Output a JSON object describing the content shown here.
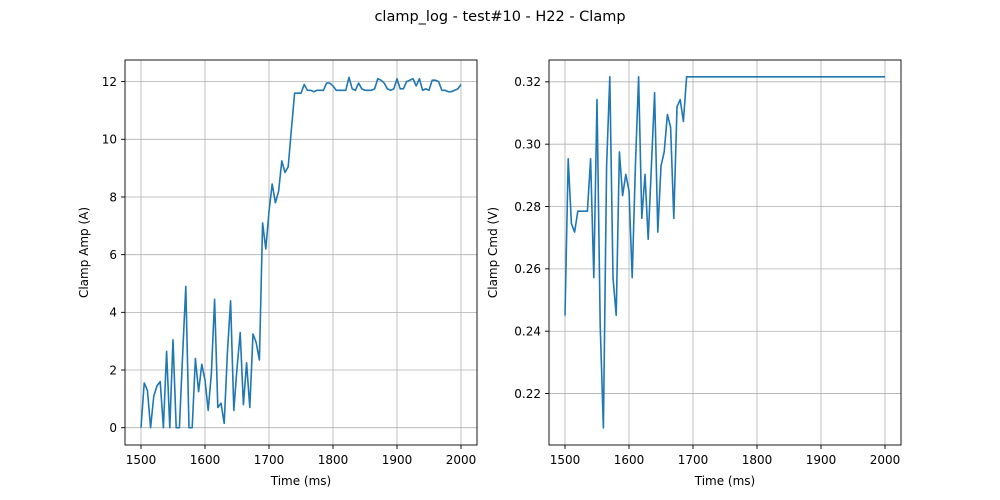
{
  "figure": {
    "title": "clamp_log - test#10 - H22 - Clamp",
    "line_color": "#1f77b4",
    "grid_color": "#b0b0b0"
  },
  "chart_data": [
    {
      "type": "line",
      "title": "",
      "xlabel": "Time (ms)",
      "ylabel": "Clamp Amp (A)",
      "xlim": [
        1475,
        2025
      ],
      "ylim": [
        -0.6,
        12.75
      ],
      "xticks": [
        1500,
        1600,
        1700,
        1800,
        1900,
        2000
      ],
      "xtick_labels": [
        "1500",
        "1600",
        "1700",
        "1800",
        "1900",
        "2000"
      ],
      "yticks": [
        0,
        2,
        4,
        6,
        8,
        10,
        12
      ],
      "ytick_labels": [
        "0",
        "2",
        "4",
        "6",
        "8",
        "10",
        "12"
      ],
      "grid": true,
      "series": [
        {
          "color": "#1f77b4",
          "x": [
            1500,
            1505,
            1510,
            1515,
            1520,
            1525,
            1530,
            1535,
            1540,
            1545,
            1550,
            1555,
            1560,
            1565,
            1570,
            1575,
            1580,
            1585,
            1590,
            1595,
            1600,
            1605,
            1610,
            1615,
            1620,
            1625,
            1630,
            1635,
            1640,
            1645,
            1650,
            1655,
            1660,
            1665,
            1670,
            1675,
            1680,
            1685,
            1690,
            1695,
            1700,
            1705,
            1710,
            1715,
            1720,
            1725,
            1730,
            1735,
            1740,
            1745,
            1750,
            1755,
            1760,
            1765,
            1770,
            1775,
            1780,
            1785,
            1790,
            1795,
            1800,
            1805,
            1810,
            1815,
            1820,
            1825,
            1830,
            1835,
            1840,
            1845,
            1850,
            1855,
            1860,
            1865,
            1870,
            1875,
            1880,
            1885,
            1890,
            1895,
            1900,
            1905,
            1910,
            1915,
            1920,
            1925,
            1930,
            1935,
            1940,
            1945,
            1950,
            1955,
            1960,
            1965,
            1970,
            1975,
            1980,
            1985,
            1990,
            1995,
            2000
          ],
          "y": [
            0,
            1.55,
            1.3,
            0,
            1.1,
            1.45,
            1.6,
            0,
            2.65,
            0,
            3.05,
            0,
            0,
            2.5,
            4.9,
            0,
            0,
            2.4,
            1.25,
            2.2,
            1.65,
            0.6,
            1.9,
            4.45,
            0.7,
            0.85,
            0.15,
            2.6,
            4.4,
            0.6,
            2.05,
            3.3,
            0.8,
            2.25,
            0.7,
            3.25,
            2.95,
            2.35,
            7.1,
            6.2,
            7.5,
            8.45,
            7.8,
            8.2,
            9.25,
            8.85,
            9.05,
            10.35,
            11.6,
            11.6,
            11.6,
            11.9,
            11.7,
            11.7,
            11.65,
            11.7,
            11.7,
            11.7,
            11.95,
            11.95,
            11.85,
            11.7,
            11.7,
            11.7,
            11.7,
            12.15,
            11.75,
            11.7,
            11.95,
            11.75,
            11.7,
            11.7,
            11.7,
            11.75,
            12.1,
            12.05,
            11.95,
            11.75,
            11.7,
            11.75,
            12.1,
            11.75,
            11.75,
            12.0,
            12.05,
            12.1,
            11.85,
            12.1,
            11.7,
            11.75,
            11.7,
            12.05,
            12.05,
            12.0,
            11.7,
            11.7,
            11.65,
            11.65,
            11.7,
            11.75,
            11.9
          ]
        }
      ]
    },
    {
      "type": "line",
      "title": "",
      "xlabel": "Time (ms)",
      "ylabel": "Clamp Cmd (V)",
      "xlim": [
        1475,
        2025
      ],
      "ylim": [
        0.2035,
        0.327
      ],
      "xticks": [
        1500,
        1600,
        1700,
        1800,
        1900,
        2000
      ],
      "xtick_labels": [
        "1500",
        "1600",
        "1700",
        "1800",
        "1900",
        "2000"
      ],
      "yticks": [
        0.22,
        0.24,
        0.26,
        0.28,
        0.3,
        0.32
      ],
      "ytick_labels": [
        "0.22",
        "0.24",
        "0.26",
        "0.28",
        "0.30",
        "0.32"
      ],
      "grid": true,
      "series": [
        {
          "color": "#1f77b4",
          "x": [
            1500,
            1505,
            1510,
            1515,
            1520,
            1525,
            1530,
            1535,
            1540,
            1545,
            1550,
            1555,
            1560,
            1565,
            1570,
            1575,
            1580,
            1585,
            1590,
            1595,
            1600,
            1605,
            1610,
            1615,
            1620,
            1625,
            1630,
            1635,
            1640,
            1645,
            1650,
            1655,
            1660,
            1665,
            1670,
            1675,
            1680,
            1685,
            1690,
            1700,
            1800,
            1900,
            2000
          ],
          "y": [
            0.245,
            0.2953,
            0.2745,
            0.2718,
            0.2785,
            0.2785,
            0.2785,
            0.2785,
            0.2953,
            0.2572,
            0.3143,
            0.2418,
            0.209,
            0.293,
            0.3216,
            0.2572,
            0.2451,
            0.2975,
            0.2835,
            0.2903,
            0.285,
            0.2572,
            0.293,
            0.3216,
            0.2762,
            0.2903,
            0.2695,
            0.293,
            0.3165,
            0.2718,
            0.293,
            0.2975,
            0.3095,
            0.3055,
            0.2762,
            0.312,
            0.3143,
            0.3073,
            0.3216,
            0.3216,
            0.3216,
            0.3216,
            0.3216
          ]
        }
      ]
    }
  ]
}
